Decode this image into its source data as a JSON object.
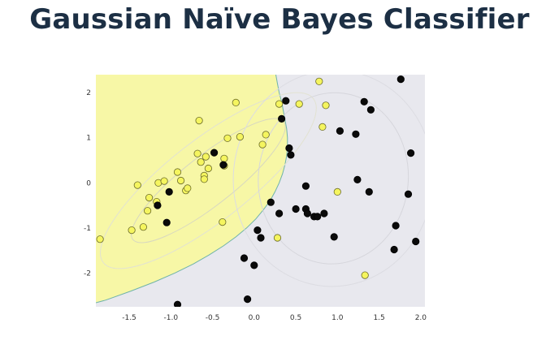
{
  "slide": {
    "title": "Gaussian Naïve Bayes Classifier"
  },
  "chart_data": {
    "type": "scatter",
    "title": "",
    "xlabel": "",
    "ylabel": "",
    "xlim": [
      -1.9,
      2.05
    ],
    "ylim": [
      -2.75,
      2.4
    ],
    "x_ticks": [
      -1.5,
      -1.0,
      -0.5,
      0.0,
      0.5,
      1.0,
      1.5,
      2.0
    ],
    "x_tick_labels": [
      "-1.5",
      "-1.0",
      "-0.5",
      "0.0",
      "0.5",
      "1.0",
      "1.5",
      "2.0"
    ],
    "y_ticks": [
      2,
      1,
      0,
      -1,
      -2
    ],
    "y_tick_labels": [
      "2",
      "1",
      "0",
      "-1",
      "-2"
    ],
    "grid": false,
    "legend": "none",
    "regions": [
      {
        "class": "yellow",
        "color": "#f7f7a6",
        "boundary": [
          [
            0.26,
            2.4
          ],
          [
            0.28,
            2.2
          ],
          [
            0.3,
            2.0
          ],
          [
            0.33,
            1.8
          ],
          [
            0.35,
            1.6
          ],
          [
            0.37,
            1.4
          ],
          [
            0.39,
            1.2
          ],
          [
            0.4,
            1.0
          ],
          [
            0.4,
            0.8
          ],
          [
            0.39,
            0.6
          ],
          [
            0.37,
            0.4
          ],
          [
            0.34,
            0.2
          ],
          [
            0.3,
            0.0
          ],
          [
            0.25,
            -0.2
          ],
          [
            0.19,
            -0.4
          ],
          [
            0.11,
            -0.6
          ],
          [
            0.02,
            -0.8
          ],
          [
            -0.09,
            -1.0
          ],
          [
            -0.22,
            -1.2
          ],
          [
            -0.37,
            -1.4
          ],
          [
            -0.54,
            -1.6
          ],
          [
            -0.73,
            -1.8
          ],
          [
            -0.95,
            -2.0
          ],
          [
            -1.2,
            -2.2
          ],
          [
            -1.48,
            -2.4
          ],
          [
            -1.78,
            -2.6
          ],
          [
            -1.9,
            -2.66
          ]
        ]
      },
      {
        "class": "black",
        "color": "#e8e8ee"
      }
    ],
    "series": [
      {
        "color": "#f5f55f",
        "points": [
          [
            -1.85,
            -1.25
          ],
          [
            -1.47,
            -1.05
          ],
          [
            -1.33,
            -0.98
          ],
          [
            -1.28,
            -0.62
          ],
          [
            -1.26,
            -0.33
          ],
          [
            -1.17,
            -0.42
          ],
          [
            -1.15,
            0.0
          ],
          [
            -1.08,
            0.04
          ],
          [
            -0.92,
            0.24
          ],
          [
            -0.82,
            -0.17
          ],
          [
            -0.8,
            -0.12
          ],
          [
            -0.68,
            0.65
          ],
          [
            -0.64,
            0.46
          ],
          [
            -0.6,
            0.16
          ],
          [
            -0.58,
            0.58
          ],
          [
            -0.55,
            0.32
          ],
          [
            -0.38,
            -0.87
          ],
          [
            -0.36,
            0.54
          ],
          [
            -0.36,
            0.38
          ],
          [
            -0.32,
            0.99
          ],
          [
            -0.17,
            1.02
          ],
          [
            -0.22,
            1.78
          ],
          [
            -0.66,
            1.38
          ],
          [
            0.1,
            0.85
          ],
          [
            0.14,
            1.07
          ],
          [
            0.28,
            -1.22
          ],
          [
            0.3,
            1.75
          ],
          [
            0.54,
            1.75
          ],
          [
            0.78,
            2.25
          ],
          [
            0.82,
            1.24
          ],
          [
            0.86,
            1.72
          ],
          [
            1.0,
            -0.2
          ],
          [
            1.33,
            -2.05
          ],
          [
            -1.4,
            -0.05
          ],
          [
            -0.88,
            0.05
          ],
          [
            -0.6,
            0.08
          ]
        ]
      },
      {
        "color": "#0a0a0a",
        "points": [
          [
            -0.92,
            -2.7
          ],
          [
            -1.16,
            -0.5
          ],
          [
            -1.05,
            -0.88
          ],
          [
            -1.02,
            -0.2
          ],
          [
            -0.48,
            0.67
          ],
          [
            -0.37,
            0.4
          ],
          [
            -0.12,
            -1.67
          ],
          [
            -0.08,
            -2.58
          ],
          [
            0.0,
            -1.83
          ],
          [
            0.04,
            -1.05
          ],
          [
            0.08,
            -1.22
          ],
          [
            0.2,
            -0.43
          ],
          [
            0.3,
            -0.68
          ],
          [
            0.33,
            1.42
          ],
          [
            0.38,
            1.82
          ],
          [
            0.42,
            0.77
          ],
          [
            0.44,
            0.62
          ],
          [
            0.5,
            -0.58
          ],
          [
            0.62,
            -0.58
          ],
          [
            0.64,
            -0.68
          ],
          [
            0.62,
            -0.07
          ],
          [
            0.72,
            -0.75
          ],
          [
            0.76,
            -0.75
          ],
          [
            0.84,
            -0.68
          ],
          [
            0.96,
            -1.2
          ],
          [
            1.03,
            1.15
          ],
          [
            1.22,
            1.08
          ],
          [
            1.24,
            0.07
          ],
          [
            1.32,
            1.8
          ],
          [
            1.38,
            -0.2
          ],
          [
            1.4,
            1.62
          ],
          [
            1.68,
            -1.48
          ],
          [
            1.7,
            -0.95
          ],
          [
            1.76,
            2.3
          ],
          [
            1.85,
            -0.25
          ],
          [
            1.88,
            0.66
          ],
          [
            1.94,
            -1.3
          ]
        ]
      }
    ]
  }
}
